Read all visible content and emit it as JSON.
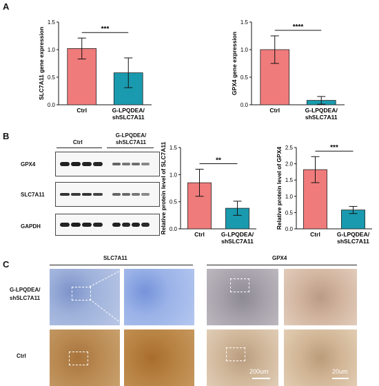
{
  "panels": {
    "a": "A",
    "b": "B",
    "c": "C"
  },
  "chart_data": [
    {
      "type": "bar",
      "categories": [
        "Ctrl",
        "G-LPQDEA/ shSLC7A11"
      ],
      "values": [
        1.02,
        0.58
      ],
      "errors": [
        0.19,
        0.27
      ],
      "colors": [
        "#f07b7b",
        "#1a9aae"
      ],
      "ylabel": "SLC7A11 gene expression",
      "ylim": [
        0,
        1.5
      ],
      "yticks": [
        "0.0",
        "0.5",
        "1.0",
        "1.5"
      ],
      "significance": "***"
    },
    {
      "type": "bar",
      "categories": [
        "Ctrl",
        "G-LPQDEA/ shSLC7A11"
      ],
      "values": [
        1.0,
        0.08
      ],
      "errors": [
        0.25,
        0.07
      ],
      "colors": [
        "#f07b7b",
        "#1a9aae"
      ],
      "ylabel": "GPX4 gene expression",
      "ylim": [
        0,
        1.5
      ],
      "yticks": [
        "0.0",
        "0.5",
        "1.0",
        "1.5"
      ],
      "significance": "****"
    },
    {
      "type": "bar",
      "categories": [
        "Ctrl",
        "G-LPQDEA/ shSLC7A11"
      ],
      "values": [
        0.85,
        0.38
      ],
      "errors": [
        0.25,
        0.13
      ],
      "colors": [
        "#f07b7b",
        "#1a9aae"
      ],
      "ylabel": "Relative protein level of SLC7A11",
      "ylim": [
        0,
        1.5
      ],
      "yticks": [
        "0.0",
        "0.5",
        "1.0",
        "1.5"
      ],
      "significance": "**"
    },
    {
      "type": "bar",
      "categories": [
        "Ctrl",
        "G-LPQDEA/ shSLC7A11"
      ],
      "values": [
        1.82,
        0.58
      ],
      "errors": [
        0.4,
        0.11
      ],
      "colors": [
        "#f07b7b",
        "#1a9aae"
      ],
      "ylabel": "Relative protein level of GPX4",
      "ylim": [
        0,
        2.5
      ],
      "yticks": [
        "0.0",
        "0.5",
        "1.0",
        "1.5",
        "2.0",
        "2.5"
      ],
      "significance": "***"
    }
  ],
  "western_blot": {
    "group_ctrl": "Ctrl",
    "group_treated_line1": "G-LPQDEA/",
    "group_treated_line2": "shSLC7A11",
    "rows": [
      "GPX4",
      "SLC7A11",
      "GAPDH"
    ]
  },
  "ihc": {
    "col_slc7a11": "SLC7A11",
    "col_gpx4": "GPX4",
    "row_treated_line1": "G-LPQDEA/",
    "row_treated_line2": "shSLC7A11",
    "row_ctrl": "Ctrl",
    "scale_1": "200um",
    "scale_2": "20um"
  }
}
